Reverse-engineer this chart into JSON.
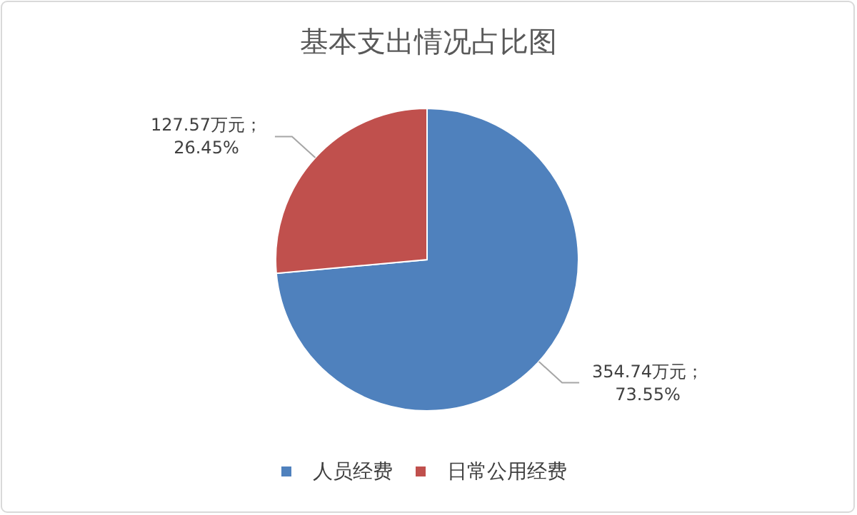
{
  "chart_data": {
    "type": "pie",
    "title": "基本支出情况占比图",
    "categories": [
      "人员经费",
      "日常公用经费"
    ],
    "values": [
      354.74,
      127.57
    ],
    "colors": [
      "#4f81bd",
      "#c0504d"
    ],
    "value_labels": [
      "354.74万元；\n73.55%",
      "127.57万元；\n26.45%"
    ],
    "legend": "bottom"
  }
}
